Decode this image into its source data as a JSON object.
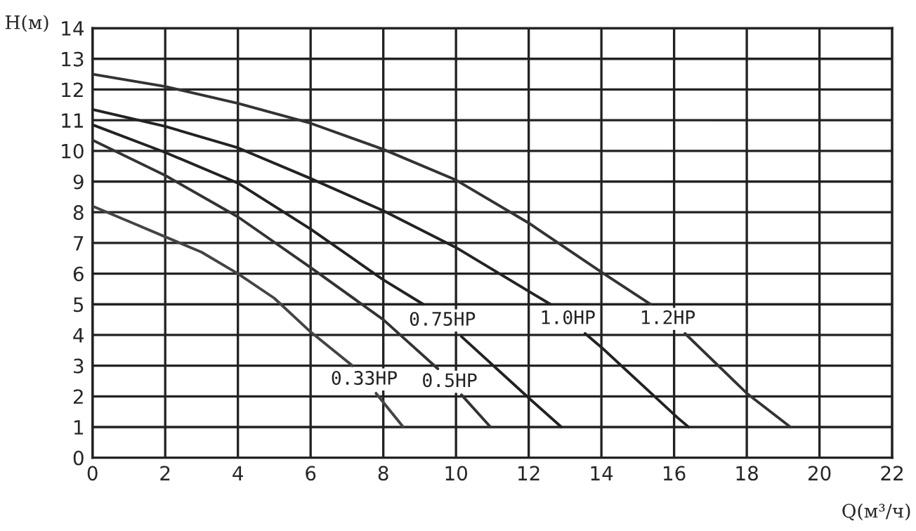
{
  "chart_data": {
    "type": "line",
    "xlabel": "Q(м³/ч)",
    "ylabel": "H(м)",
    "xlim": [
      0,
      22
    ],
    "xticks": [
      0,
      2,
      4,
      6,
      8,
      10,
      12,
      14,
      16,
      18,
      20,
      22
    ],
    "ylim": [
      0,
      14
    ],
    "yticks": [
      0,
      1,
      2,
      3,
      4,
      5,
      6,
      7,
      8,
      9,
      10,
      11,
      12,
      13,
      14
    ],
    "grid": true,
    "legend": false,
    "marker": "none",
    "line_style": "solid",
    "series": [
      {
        "name": "0.33HP",
        "color": "#444444",
        "x": [
          0,
          1,
          2,
          3,
          4,
          5,
          6,
          7.15,
          null,
          7.8,
          8.55
        ],
        "values": [
          8.2,
          7.7,
          7.2,
          6.7,
          6.0,
          5.2,
          4.1,
          3.0,
          null,
          2.1,
          1.0
        ]
      },
      {
        "name": "0.5HP",
        "color": "#333333",
        "x": [
          0,
          2,
          4,
          6,
          8,
          9.5,
          null,
          10.15,
          10.95
        ],
        "values": [
          10.35,
          9.2,
          7.85,
          6.2,
          4.5,
          2.9,
          null,
          2.05,
          1.0
        ]
      },
      {
        "name": "0.75HP",
        "color": "#222222",
        "x": [
          0,
          2,
          4,
          6,
          8,
          9.1,
          null,
          10.15,
          12,
          12.9
        ],
        "values": [
          10.85,
          9.95,
          8.95,
          7.45,
          5.8,
          5.0,
          null,
          3.95,
          1.95,
          1.0
        ]
      },
      {
        "name": "1.0HP",
        "color": "#222222",
        "x": [
          0,
          2,
          4,
          6,
          8,
          10,
          12.6,
          null,
          13.55,
          14,
          16.1,
          16.4
        ],
        "values": [
          11.35,
          10.8,
          10.1,
          9.1,
          8.05,
          6.85,
          5.0,
          null,
          4.05,
          3.6,
          1.3,
          1.0
        ]
      },
      {
        "name": "1.2HP",
        "color": "#333333",
        "x": [
          0,
          2,
          4,
          6,
          8,
          10,
          12,
          14,
          15.35,
          null,
          16.3,
          18,
          19.2
        ],
        "values": [
          12.5,
          12.1,
          11.55,
          10.9,
          10.05,
          9.05,
          7.65,
          6.05,
          5.0,
          null,
          4.05,
          2.1,
          1.0
        ]
      }
    ]
  }
}
